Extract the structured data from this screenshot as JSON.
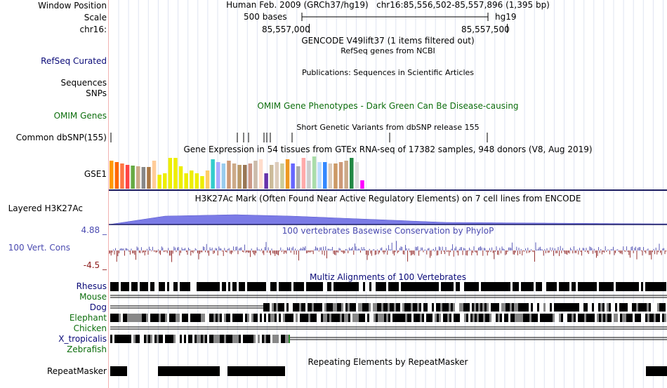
{
  "colors": {
    "navy": "#0a0a78",
    "green": "#0d6e0d",
    "conservation": "#4a4ab0",
    "conservation_neg": "#8b1a1a",
    "h3k27ac": "#7b7be6",
    "grid": "#dfe4f2"
  },
  "header": {
    "window_position_label": "Window Position",
    "scale_label": "Scale",
    "chrom_label": "chr16:",
    "assembly": "Human Feb. 2009 (GRCh37/hg19)",
    "position": "chr16:85,556,502-85,557,896 (1,395 bp)",
    "scale_text": "500 bases",
    "db": "hg19",
    "tick1": "85,557,000",
    "tick2": "85,557,500"
  },
  "tracks": {
    "gencode_title": "GENCODE V49lift37 (1 items filtered out)",
    "refseq_desc": "RefSeq genes from NCBI",
    "refseq_label": "RefSeq Curated",
    "pubs_desc": "Publications: Sequences in Scientific Articles",
    "sequences_label": "Sequences",
    "snps_label": "SNPs",
    "omim_label": "OMIM Genes",
    "omim_desc": "OMIM Gene Phenotypes - Dark Green Can Be Disease-causing",
    "dbsnp_desc": "Short Genetic Variants from dbSNP release 155",
    "dbsnp_label": "Common dbSNP(155)",
    "gtex_desc": "Gene Expression in 54 tissues from GTEx RNA-seq of 17382 samples, 948 donors (V8, Aug 2019)",
    "gtex_label": "GSE1",
    "h3k27ac_desc": "H3K27Ac Mark (Often Found Near Active Regulatory Elements) on 7 cell lines from ENCODE",
    "h3k27ac_label": "Layered H3K27Ac",
    "cons_max": "4.88 _",
    "cons_desc": "100 vertebrates Basewise Conservation by PhyloP",
    "cons_label": "100 Vert. Cons",
    "cons_min": "-4.5 _",
    "multiz_desc": "Multiz Alignments of 100 Vertebrates",
    "species": [
      {
        "name": "Rhesus",
        "color": "navy"
      },
      {
        "name": "Mouse",
        "color": "green"
      },
      {
        "name": "Dog",
        "color": "navy"
      },
      {
        "name": "Elephant",
        "color": "green"
      },
      {
        "name": "Chicken",
        "color": "green"
      },
      {
        "name": "X_tropicalis",
        "color": "navy"
      },
      {
        "name": "Zebrafish",
        "color": "green"
      }
    ],
    "rmsk_desc": "Repeating Elements by RepeatMasker",
    "rmsk_label": "RepeatMasker"
  },
  "gtex_tissue_colors": [
    "#ff9900",
    "#ff6600",
    "#ff7744",
    "#ff4444",
    "#66aa44",
    "#ccaa88",
    "#888888",
    "#aa7744",
    "#ffcc99",
    "#eeee00",
    "#eeee00",
    "#eeee00",
    "#eeee00",
    "#eeee00",
    "#eeee00",
    "#eeee00",
    "#eeee00",
    "#eeee00",
    "#ffcc66",
    "#33cccc",
    "#aaaaff",
    "#99ccee",
    "#cc9977",
    "#ccaa88",
    "#bb9966",
    "#997755",
    "#cc9988",
    "#ccbbaa",
    "#ffddcc",
    "#6633aa",
    "#ccbb99",
    "#ddccbb",
    "#cccc99",
    "#ee9922",
    "#6666ff",
    "#aaaaaa",
    "#ffaaaa",
    "#cccccc",
    "#aaddaa",
    "#bbddff",
    "#3388ff",
    "#ddccbb",
    "#cc9966",
    "#cc9977",
    "#ccaa88",
    "#228844",
    "#dddddd",
    "#ff00ff"
  ],
  "gtex_heights": [
    40,
    38,
    36,
    34,
    33,
    32,
    31,
    31,
    40,
    20,
    22,
    44,
    44,
    32,
    22,
    26,
    22,
    18,
    26,
    42,
    38,
    36,
    40,
    36,
    34,
    34,
    36,
    40,
    42,
    22,
    34,
    38,
    36,
    42,
    36,
    32,
    44,
    40,
    46,
    38,
    38,
    36,
    36,
    38,
    40,
    44,
    38,
    12
  ]
}
